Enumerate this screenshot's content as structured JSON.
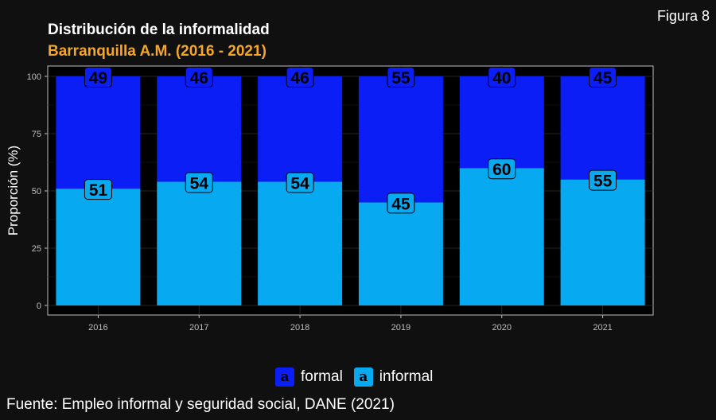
{
  "figure_label": "Figura 8",
  "legend": {
    "items": [
      {
        "key_glyph": "a",
        "label": "formal",
        "color": "#0a1ef5"
      },
      {
        "key_glyph": "a",
        "label": "informal",
        "color": "#07a9f0"
      }
    ]
  },
  "source": "Fuente: Empleo informal y seguridad social, DANE (2021)",
  "chart_data": {
    "type": "bar",
    "stacked": true,
    "title": "Distribución de la informalidad",
    "subtitle": "Barranquilla A.M. (2016 - 2021)",
    "xlabel": "",
    "ylabel": "Proporción (%)",
    "ylim": [
      0,
      100
    ],
    "yticks": [
      0,
      25,
      50,
      75,
      100
    ],
    "categories": [
      "2016",
      "2017",
      "2018",
      "2019",
      "2020",
      "2021"
    ],
    "series": [
      {
        "name": "informal",
        "values": [
          51,
          54,
          54,
          45,
          60,
          55
        ],
        "color": "#07a9f0"
      },
      {
        "name": "formal",
        "values": [
          49,
          46,
          46,
          55,
          40,
          45
        ],
        "color": "#0a1ef5"
      }
    ],
    "grid": true,
    "legend_position": "bottom",
    "background": "#000000"
  }
}
